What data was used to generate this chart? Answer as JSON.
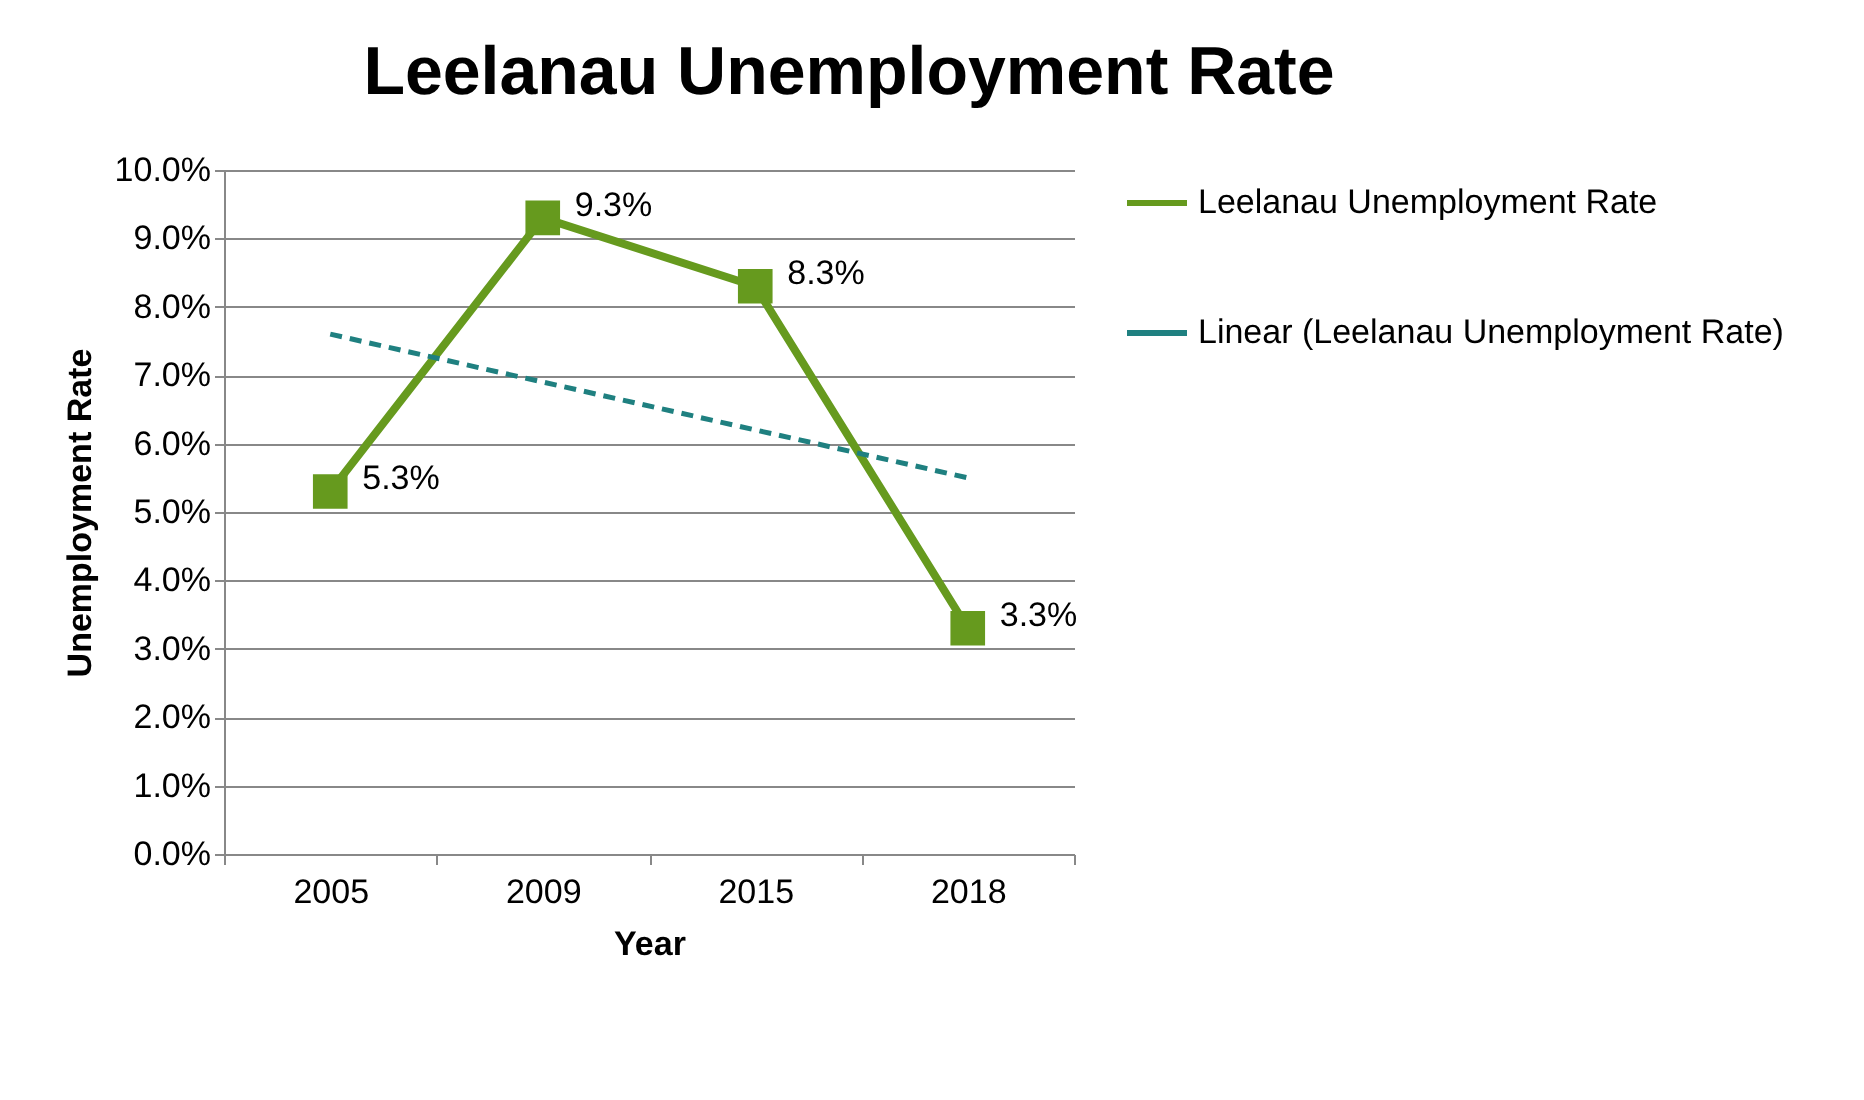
{
  "chart_data": {
    "type": "line",
    "title": "Leelanau Unemployment Rate",
    "xlabel": "Year",
    "ylabel": "Unemployment Rate",
    "categories": [
      "2005",
      "2009",
      "2015",
      "2018"
    ],
    "series": [
      {
        "name": "Leelanau Unemployment Rate",
        "color": "#669a1e",
        "values": [
          5.3,
          9.3,
          8.3,
          3.3
        ],
        "value_labels": [
          "5.3%",
          "9.3%",
          "8.3%",
          "3.3%"
        ],
        "marker": "square",
        "line_style": "solid"
      },
      {
        "name": "Linear (Leelanau Unemployment Rate)",
        "type": "line",
        "color": "#1f8080",
        "values": [
          7.6,
          6.9,
          6.2,
          5.5
        ],
        "marker": "none",
        "line_style": "dashed"
      }
    ],
    "ylim": [
      0,
      10
    ],
    "yticks": [
      {
        "value": 0,
        "label": "0.0%"
      },
      {
        "value": 1,
        "label": "1.0%"
      },
      {
        "value": 2,
        "label": "2.0%"
      },
      {
        "value": 3,
        "label": "3.0%"
      },
      {
        "value": 4,
        "label": "4.0%"
      },
      {
        "value": 5,
        "label": "5.0%"
      },
      {
        "value": 6,
        "label": "6.0%"
      },
      {
        "value": 7,
        "label": "7.0%"
      },
      {
        "value": 8,
        "label": "8.0%"
      },
      {
        "value": 9,
        "label": "9.0%"
      },
      {
        "value": 10,
        "label": "10.0%"
      }
    ],
    "grid": "y",
    "legend": "right"
  }
}
